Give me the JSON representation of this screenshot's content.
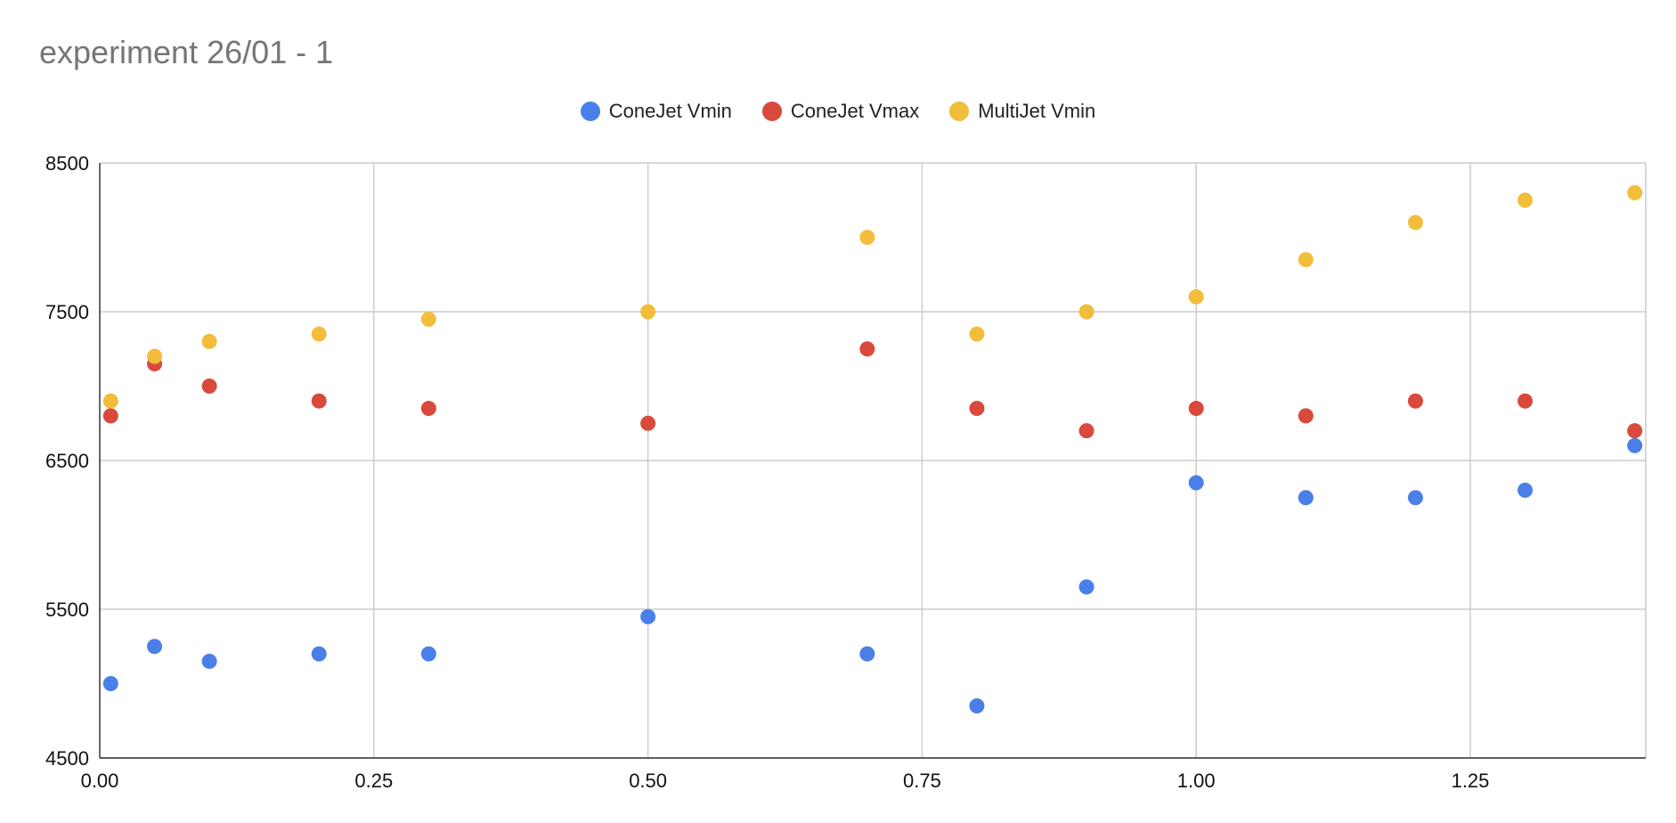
{
  "chart_data": {
    "type": "scatter",
    "title": "experiment 26/01 - 1",
    "xlabel": "",
    "ylabel": "",
    "xlim": [
      0,
      1.41
    ],
    "ylim": [
      4500,
      8500
    ],
    "x_ticks": [
      0,
      0.25,
      0.5,
      0.75,
      1.0,
      1.25
    ],
    "x_tick_labels": [
      "0.00",
      "0.25",
      "0.50",
      "0.75",
      "1.00",
      "1.25"
    ],
    "y_ticks": [
      4500,
      5500,
      6500,
      7500,
      8500
    ],
    "y_tick_labels": [
      "4500",
      "5500",
      "6500",
      "7500",
      "8500"
    ],
    "grid": true,
    "legend_position": "top-center",
    "x": [
      0.01,
      0.05,
      0.1,
      0.2,
      0.3,
      0.5,
      0.7,
      0.8,
      0.9,
      1.0,
      1.1,
      1.2,
      1.3,
      1.4
    ],
    "series": [
      {
        "name": "ConeJet Vmin",
        "color": "#4a7fe8",
        "values": [
          5000,
          5250,
          5150,
          5200,
          5200,
          5450,
          5200,
          4850,
          5650,
          6350,
          6250,
          6250,
          6300,
          6600
        ]
      },
      {
        "name": "ConeJet Vmax",
        "color": "#d9493c",
        "values": [
          6800,
          7150,
          7000,
          6900,
          6850,
          6750,
          7250,
          6850,
          6700,
          6850,
          6800,
          6900,
          6900,
          6700
        ]
      },
      {
        "name": "MultiJet Vmin",
        "color": "#f2bd3b",
        "values": [
          6900,
          7200,
          7300,
          7350,
          7450,
          7500,
          8000,
          7350,
          7500,
          7600,
          7850,
          8100,
          8250,
          8300
        ]
      }
    ]
  }
}
